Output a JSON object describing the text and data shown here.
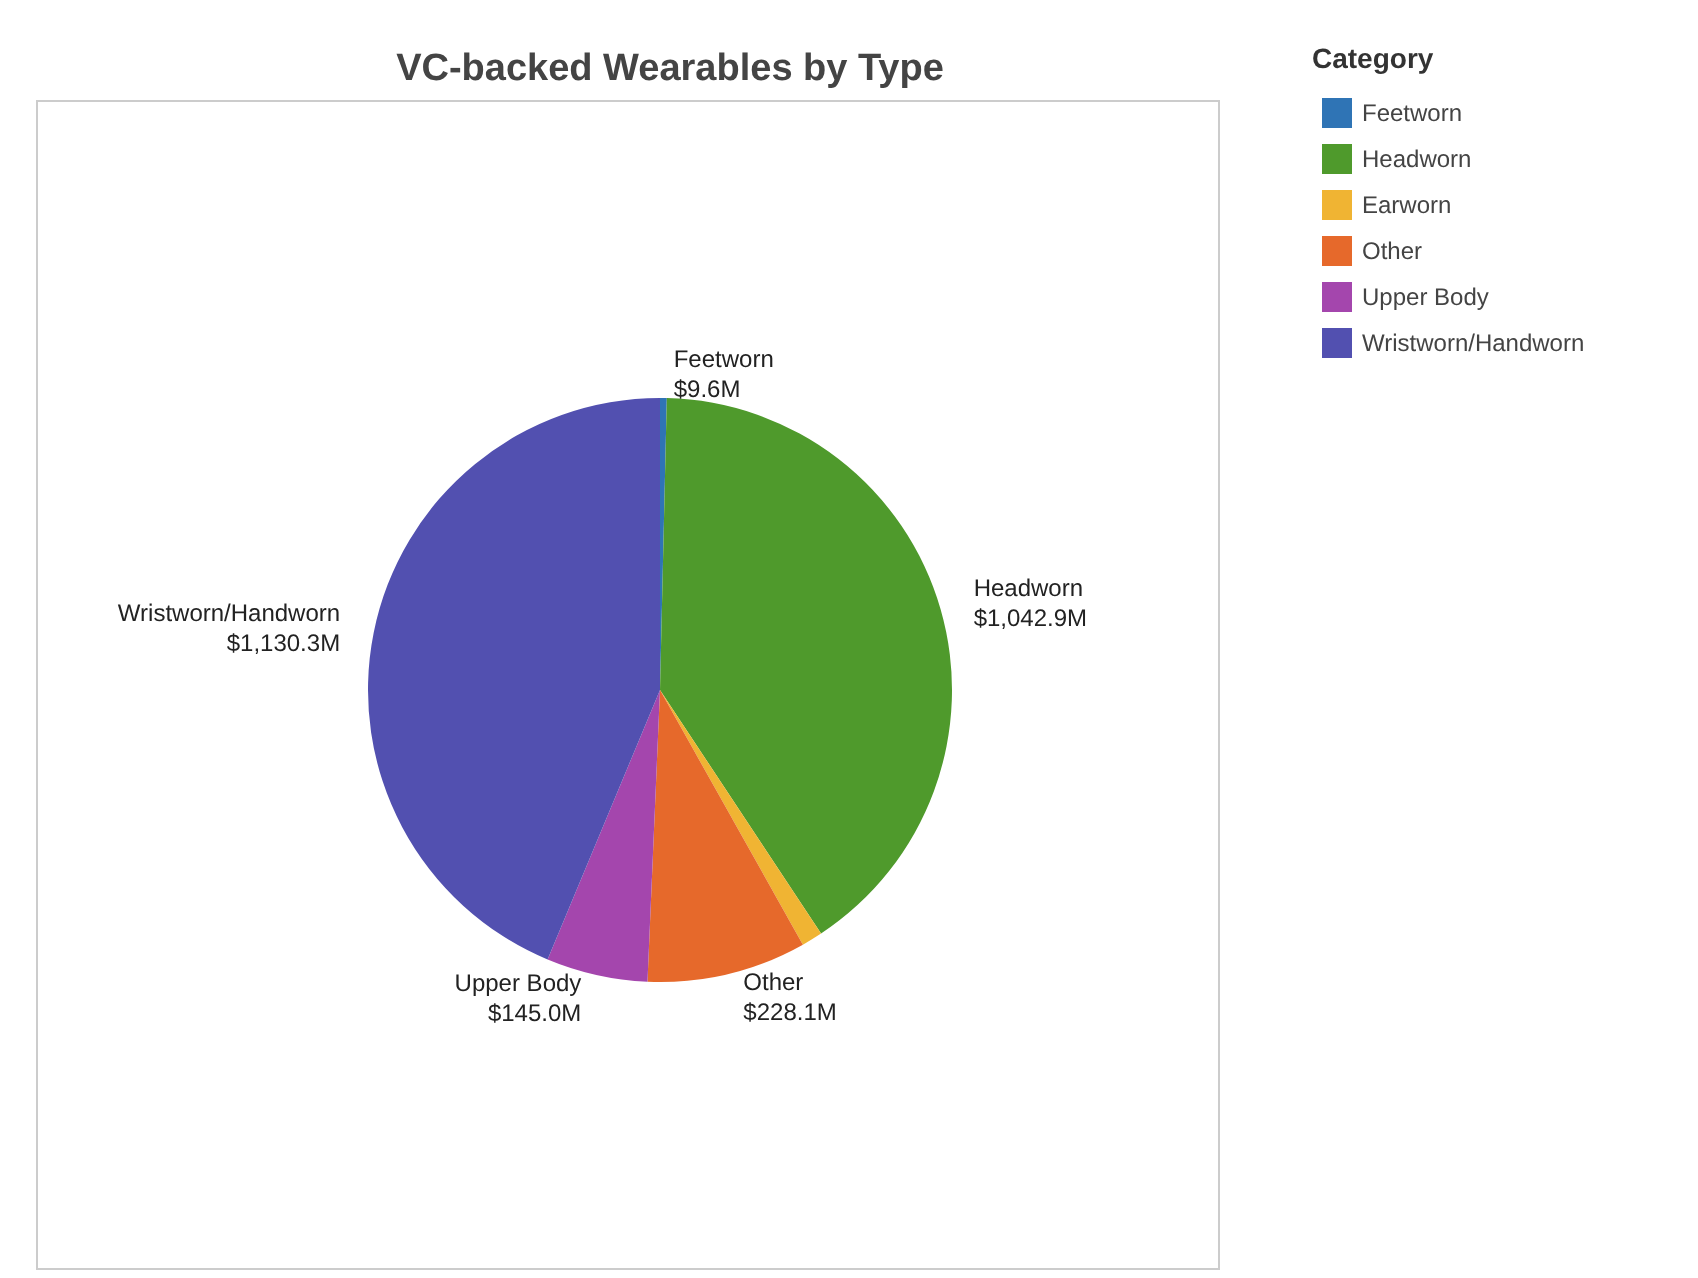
{
  "chart_data": {
    "type": "pie",
    "title": "VC-backed Wearables by Type",
    "legend_title": "Category",
    "legend": "top right",
    "categories": [
      "Feetworn",
      "Headworn",
      "Earworn",
      "Other",
      "Upper Body",
      "Wristworn/Handworn"
    ],
    "values": [
      9.6,
      1042.9,
      30,
      228.1,
      145.0,
      1130.3
    ],
    "value_labels": [
      "$9.6M",
      "$1,042.9M",
      null,
      "$228.1M",
      "$145.0M",
      "$1,130.3M"
    ],
    "colors": [
      "#2f74b5",
      "#4f9a2c",
      "#f0b433",
      "#e6692b",
      "#a446ad",
      "#5250b0"
    ]
  }
}
